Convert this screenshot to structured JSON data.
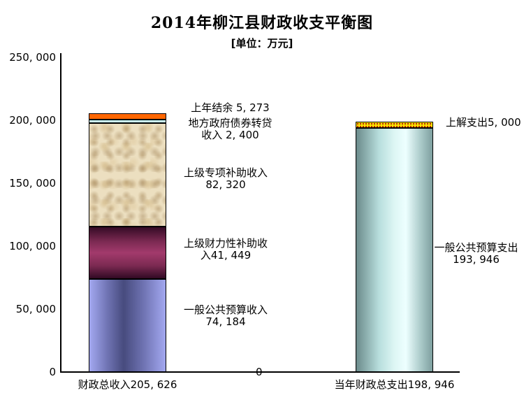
{
  "title": "2014年柳江县财政收支平衡图",
  "subtitle": "[单位：万元]",
  "chart_data": {
    "type": "bar",
    "stacked": true,
    "unit": "万元",
    "title": "2014年柳江县财政收支平衡图",
    "subtitle": "[单位：万元]",
    "ylim": [
      0,
      250000
    ],
    "grid": false,
    "legend": false,
    "axis_extra_label": "0",
    "yticks": [
      {
        "value": 0,
        "label": "0"
      },
      {
        "value": 50000,
        "label": "50, 000"
      },
      {
        "value": 100000,
        "label": "100, 000"
      },
      {
        "value": 150000,
        "label": "150, 000"
      },
      {
        "value": 200000,
        "label": "200, 000"
      },
      {
        "value": 250000,
        "label": "250, 000"
      }
    ],
    "stacks": [
      {
        "name": "财政总收入",
        "total": 205626,
        "category_label": "财政总收入205, 626",
        "segments": [
          {
            "name": "一般公共预算收入",
            "value": 74184,
            "color": "#474b7e",
            "color_edge": "#a3a8f0",
            "fill_style": "horizontal-cylinder-gradient",
            "label_lines": [
              "一般公共预算收入",
              "74, 184"
            ]
          },
          {
            "name": "上级财力性补助收入",
            "value": 41449,
            "color": "#a23a6c",
            "color_edge": "#350b26",
            "fill_style": "vertical-gradient",
            "label_lines": [
              "上级财力性补助收",
              "入41, 449"
            ]
          },
          {
            "name": "上级专项补助收入",
            "value": 82320,
            "color": "#ecdfc0",
            "fill_style": "parchment-texture",
            "label_lines": [
              "上级专项补助收入",
              "82, 320"
            ]
          },
          {
            "name": "地方政府债券转贷收入",
            "value": 2400,
            "color": "#ccffff",
            "fill_style": "solid",
            "label_lines": [
              "地方政府债券转贷",
              "收入 2, 400"
            ]
          },
          {
            "name": "上年结余",
            "value": 5273,
            "color": "#ff6600",
            "fill_style": "solid",
            "label_lines": [
              "上年结余 5, 273"
            ]
          }
        ]
      },
      {
        "name": "当年财政总支出",
        "total": 198946,
        "category_label": "当年财政总支出198, 946",
        "segments": [
          {
            "name": "一般公共预算支出",
            "value": 193946,
            "color": "#edffff",
            "color_edge": "#6b8b8b",
            "fill_style": "horizontal-cylinder-gradient",
            "label_lines": [
              "一般公共预算支出",
              "193, 946"
            ]
          },
          {
            "name": "上解支出",
            "value": 5000,
            "color": "#ffee00",
            "dot_color": "#b22200",
            "fill_style": "yellow-dotted",
            "label_lines": [
              "上解支出5, 000"
            ]
          }
        ]
      }
    ]
  }
}
